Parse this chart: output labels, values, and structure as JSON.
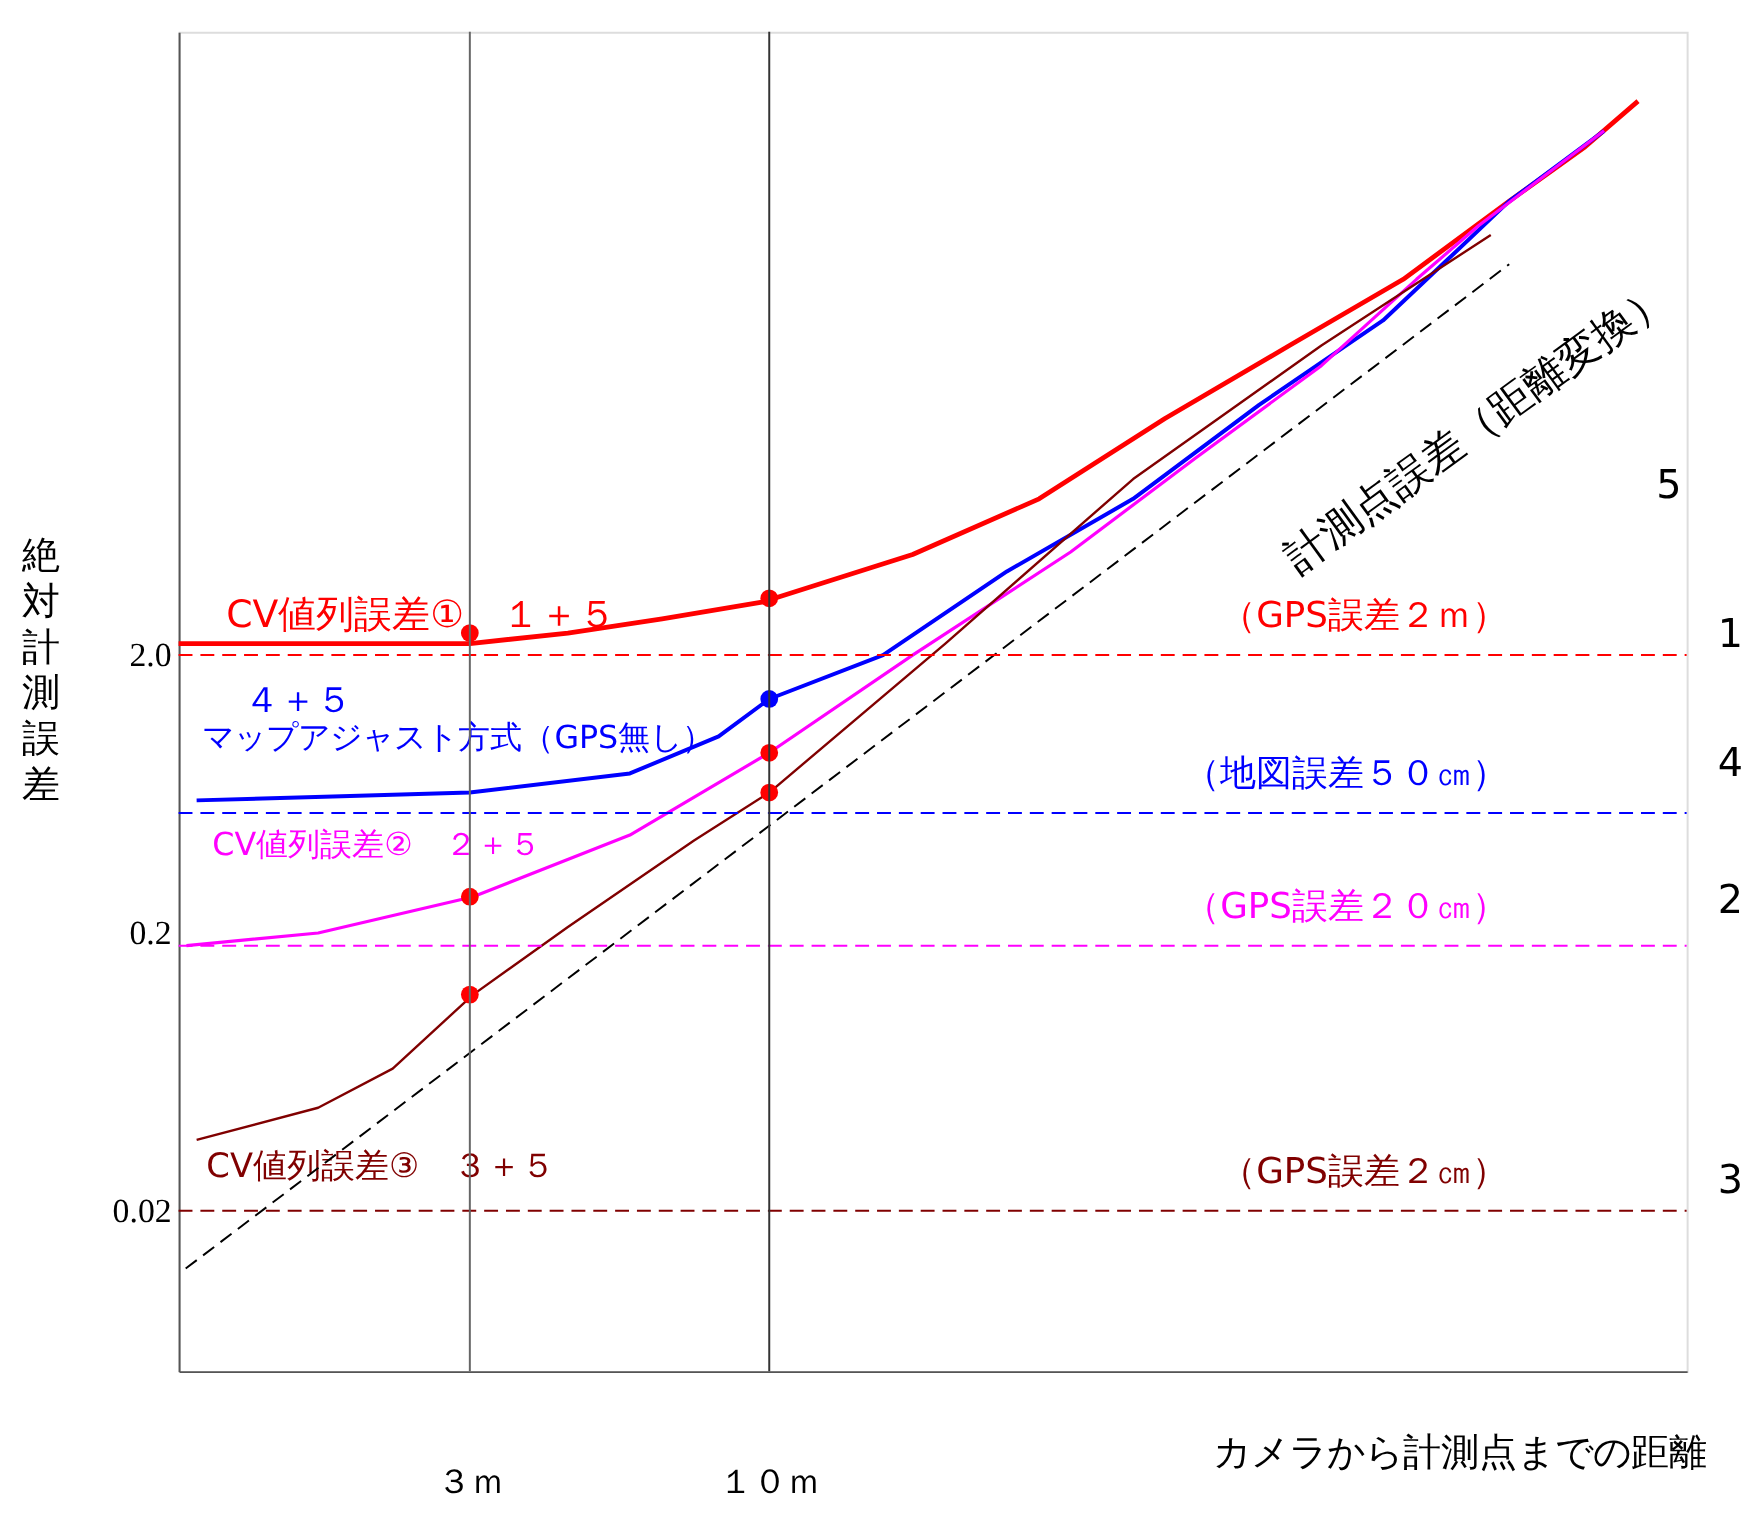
{
  "chart_data": {
    "type": "line",
    "xlabel": "カメラから計測点までの距離",
    "ylabel": "絶対計測誤差",
    "log": "xy",
    "xlim": [
      0.93,
      400
    ],
    "ylim": [
      0.0053,
      350
    ],
    "xticks": [
      {
        "value": 3,
        "label": "３ｍ"
      },
      {
        "value": 10,
        "label": "１０ｍ"
      }
    ],
    "yticks": [
      {
        "value": 0.02,
        "label": "0.02"
      },
      {
        "value": 0.2,
        "label": "0.2"
      },
      {
        "value": 2,
        "label": "2.0"
      }
    ],
    "grid": false,
    "marker": "none",
    "series": [
      {
        "name": "CV値列誤差①　１＋５",
        "color": "#ff0000",
        "x": [
          0.93,
          1.43,
          3.0,
          4.45,
          6.5,
          9.71,
          17.8,
          29.6,
          49.1,
          81,
          128,
          196,
          266,
          329
        ],
        "values": [
          2.2,
          2.2,
          2.2,
          2.4,
          2.7,
          3.1,
          4.6,
          7.3,
          14.2,
          26,
          45,
          86,
          135,
          197
        ]
      },
      {
        "name": "マップアジャスト方式（GPS無し）",
        "color": "#0000ff",
        "x": [
          1.0,
          1.73,
          3.0,
          5.71,
          8.16,
          10,
          15.8,
          26,
          43.2,
          71.7,
          118,
          153,
          196,
          287
        ],
        "values": [
          0.6,
          0.62,
          0.64,
          0.75,
          1.02,
          1.39,
          2.0,
          4.0,
          7.3,
          15.9,
          32,
          53,
          86,
          154
        ]
      },
      {
        "name": "CV値列誤差②　２＋５",
        "color": "#ff00ff",
        "x": [
          0.96,
          1.63,
          3.04,
          5.71,
          10,
          17.8,
          33.6,
          55.4,
          92.1,
          135,
          173,
          287
        ],
        "values": [
          0.18,
          0.2,
          0.27,
          0.45,
          0.89,
          2.0,
          4.7,
          10.2,
          22,
          45,
          70,
          154
        ]
      },
      {
        "name": "CV値列誤差③　３＋５",
        "color": "#800000",
        "x": [
          1.0,
          1.63,
          2.2,
          3.04,
          4.45,
          7.39,
          10,
          20.3,
          43.2,
          92.1,
          182
        ],
        "values": [
          0.036,
          0.047,
          0.065,
          0.12,
          0.21,
          0.43,
          0.64,
          2.2,
          8.6,
          26,
          65
        ]
      },
      {
        "color": "#000000",
        "line_style": "dashed",
        "x": [
          0.957,
          196
        ],
        "values": [
          0.0124,
          51
        ]
      },
      {
        "type": "scatter",
        "marker": "circle",
        "color": "#ff0000",
        "x": [
          3,
          10,
          3,
          3,
          10,
          10
        ],
        "values": [
          2.4,
          3.2,
          0.27,
          0.12,
          0.89,
          0.64
        ]
      },
      {
        "type": "scatter",
        "marker": "circle",
        "color": "#0000ff",
        "x": [
          10
        ],
        "values": [
          1.39
        ]
      }
    ],
    "ref_lines": [
      {
        "axis": "y",
        "value": 2.0,
        "label": "（GPS誤差２ｍ）",
        "color": "#ff0000",
        "line_style": "dashed"
      },
      {
        "axis": "y",
        "value": 0.54,
        "label": "（地図誤差５０㎝）",
        "color": "#0000ff",
        "line_style": "dashed"
      },
      {
        "axis": "y",
        "value": 0.18,
        "label": "（GPS誤差２０㎝）",
        "color": "#ff00ff",
        "line_style": "dashed"
      },
      {
        "axis": "y",
        "value": 0.02,
        "label": "（GPS誤差２㎝）",
        "color": "#800000",
        "line_style": "dashed"
      },
      {
        "axis": "x",
        "value": 3,
        "color": "#666666",
        "line_style": "solid"
      },
      {
        "axis": "x",
        "value": 10,
        "color": "#333333",
        "line_style": "solid"
      }
    ],
    "annotations": [
      "計測点誤差（距離変換）",
      "5",
      "1",
      "4",
      "2",
      "3",
      "４＋５"
    ]
  }
}
